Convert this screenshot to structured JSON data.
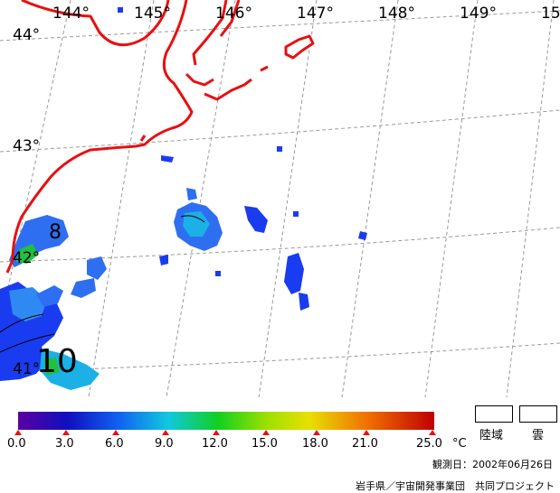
{
  "map": {
    "longitude_labels": [
      "144°",
      "145°",
      "146°",
      "147°",
      "148°",
      "149°",
      "15"
    ],
    "latitude_labels": [
      "44°",
      "43°",
      "42°",
      "41°"
    ],
    "contour_labels": [
      "8",
      "10"
    ],
    "colors": {
      "coastline": "#e81010",
      "graticule": "#9a9a9a",
      "sst_cold": "#1a3cf0",
      "sst_mid": "#2e6ff2",
      "sst_warm": "#1bb0e6",
      "sst_green": "#20c040"
    }
  },
  "colorbar": {
    "ticks": [
      "0.0",
      "3.0",
      "6.0",
      "9.0",
      "12.0",
      "15.0",
      "18.0",
      "21.0",
      "25.0"
    ],
    "unit": "°C",
    "colors": [
      "#5a00a0",
      "#1010c0",
      "#1060f0",
      "#10c8e0",
      "#10d020",
      "#e8e000",
      "#f07000",
      "#c00000"
    ]
  },
  "legend": {
    "land_label": "陸域",
    "cloud_label": "雲"
  },
  "footer": {
    "observation_date": "観測日：2002年06月26日",
    "credit": "岩手県／宇宙開発事業団　共同プロジェクト"
  }
}
